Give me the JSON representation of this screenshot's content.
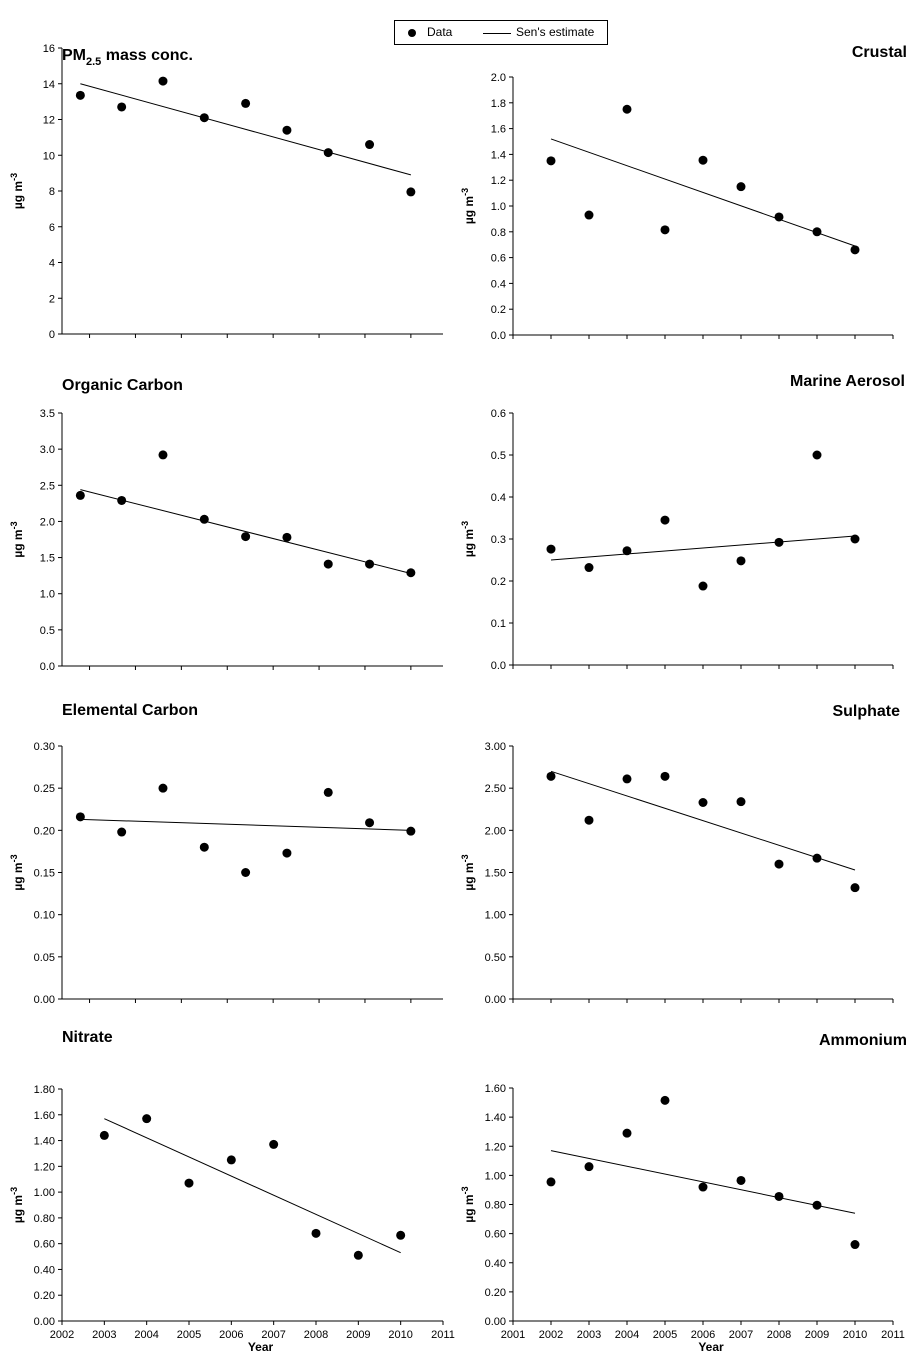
{
  "legend": {
    "data_label": "Data",
    "fit_label": "Sen's estimate"
  },
  "chart_data": [
    {
      "type": "scatter",
      "title": "PM2.5 mass conc.",
      "title_main": "PM",
      "title_sub": "2.5",
      "title_rest": " mass conc.",
      "title_align": "left",
      "ylabel": "µg m-3",
      "ylabel_main": "µg m",
      "ylabel_sup": "-3",
      "ylim": [
        0,
        16
      ],
      "yticks": [
        "0",
        "2",
        "4",
        "6",
        "8",
        "10",
        "12",
        "14",
        "16"
      ],
      "xticks": [],
      "xlabel": "",
      "series": [
        {
          "x": [
            2002.8,
            2003.7,
            2004.6,
            2005.5,
            2006.4,
            2007.3,
            2008.2,
            2009.1,
            2010.0
          ],
          "y": [
            13.35,
            12.7,
            14.15,
            12.1,
            12.9,
            11.4,
            10.15,
            10.6,
            7.95
          ]
        }
      ],
      "fit": {
        "x": [
          2002.8,
          2010.0
        ],
        "y": [
          14.0,
          8.9
        ]
      }
    },
    {
      "type": "scatter",
      "title": "Crustal",
      "title_align": "right",
      "ylabel": "µg m-3",
      "ylabel_main": "µg m",
      "ylabel_sup": "-3",
      "ylim": [
        0,
        2
      ],
      "yticks": [
        "0.0",
        "0.2",
        "0.4",
        "0.6",
        "0.8",
        "1.0",
        "1.2",
        "1.4",
        "1.6",
        "1.8",
        "2.0"
      ],
      "xticks": [],
      "xlabel": "",
      "series": [
        {
          "x": [
            2002,
            2003,
            2004,
            2005,
            2006,
            2007,
            2008,
            2009,
            2010
          ],
          "y": [
            1.35,
            0.93,
            1.75,
            0.815,
            1.355,
            1.15,
            0.915,
            0.8,
            0.66
          ]
        }
      ],
      "fit": {
        "x": [
          2002,
          2010
        ],
        "y": [
          1.52,
          0.69
        ]
      }
    },
    {
      "type": "scatter",
      "title": "Organic Carbon",
      "title_align": "left",
      "ylabel": "µg m-3",
      "ylabel_main": "µg m",
      "ylabel_sup": "-3",
      "ylim": [
        0,
        3.5
      ],
      "yticks": [
        "0.0",
        "0.5",
        "1.0",
        "1.5",
        "2.0",
        "2.5",
        "3.0",
        "3.5"
      ],
      "xticks": [],
      "xlabel": "",
      "series": [
        {
          "x": [
            2002.8,
            2003.7,
            2004.6,
            2005.5,
            2006.4,
            2007.3,
            2008.2,
            2009.1,
            2010.0
          ],
          "y": [
            2.36,
            2.29,
            2.92,
            2.03,
            1.79,
            1.78,
            1.41,
            1.41,
            1.29
          ]
        }
      ],
      "fit": {
        "x": [
          2002.8,
          2010.0
        ],
        "y": [
          2.44,
          1.28
        ]
      }
    },
    {
      "type": "scatter",
      "title": "Marine Aerosol",
      "title_align": "right",
      "ylabel": "µg m-3",
      "ylabel_main": "µg m",
      "ylabel_sup": "-3",
      "ylim": [
        0,
        0.6
      ],
      "yticks": [
        "0.0",
        "0.1",
        "0.2",
        "0.3",
        "0.4",
        "0.5",
        "0.6"
      ],
      "xticks": [],
      "xlabel": "",
      "series": [
        {
          "x": [
            2002,
            2003,
            2004,
            2005,
            2006,
            2007,
            2008,
            2009,
            2010
          ],
          "y": [
            0.276,
            0.232,
            0.272,
            0.345,
            0.188,
            0.248,
            0.292,
            0.5,
            0.3
          ]
        }
      ],
      "fit": {
        "x": [
          2002,
          2010
        ],
        "y": [
          0.25,
          0.307
        ]
      }
    },
    {
      "type": "scatter",
      "title": "Elemental Carbon",
      "title_align": "left",
      "ylabel": "µg m-3",
      "ylabel_main": "µg m",
      "ylabel_sup": "-3",
      "ylim": [
        0,
        0.3
      ],
      "yticks": [
        "0.00",
        "0.05",
        "0.10",
        "0.15",
        "0.20",
        "0.25",
        "0.30"
      ],
      "xticks": [],
      "xlabel": "",
      "series": [
        {
          "x": [
            2002.8,
            2003.7,
            2004.6,
            2005.5,
            2006.4,
            2007.3,
            2008.2,
            2009.1,
            2010.0
          ],
          "y": [
            0.216,
            0.198,
            0.25,
            0.18,
            0.15,
            0.173,
            0.245,
            0.209,
            0.199
          ]
        }
      ],
      "fit": {
        "x": [
          2002.8,
          2010.0
        ],
        "y": [
          0.213,
          0.2
        ]
      }
    },
    {
      "type": "scatter",
      "title": "Sulphate",
      "title_align": "right",
      "ylabel": "µg m-3",
      "ylabel_main": "µg m",
      "ylabel_sup": "-3",
      "ylim": [
        0,
        3
      ],
      "yticks": [
        "0.00",
        "0.50",
        "1.00",
        "1.50",
        "2.00",
        "2.50",
        "3.00"
      ],
      "xticks": [],
      "xlabel": "",
      "series": [
        {
          "x": [
            2002,
            2003,
            2004,
            2005,
            2006,
            2007,
            2008,
            2009,
            2010
          ],
          "y": [
            2.64,
            2.12,
            2.61,
            2.64,
            2.33,
            2.34,
            1.6,
            1.67,
            1.32
          ]
        }
      ],
      "fit": {
        "x": [
          2002,
          2010
        ],
        "y": [
          2.7,
          1.53
        ]
      }
    },
    {
      "type": "scatter",
      "title": "Nitrate",
      "title_align": "left",
      "ylabel": "µg m-3",
      "ylabel_main": "µg m",
      "ylabel_sup": "-3",
      "ylim": [
        0,
        1.8
      ],
      "yticks": [
        "0.00",
        "0.20",
        "0.40",
        "0.60",
        "0.80",
        "1.00",
        "1.20",
        "1.40",
        "1.60",
        "1.80"
      ],
      "xlim": [
        2002,
        2011
      ],
      "xticks": [
        "2002",
        "2003",
        "2004",
        "2005",
        "2006",
        "2007",
        "2008",
        "2009",
        "2010",
        "2011"
      ],
      "xlabel": "Year",
      "series": [
        {
          "x": [
            2003,
            2004,
            2005,
            2006,
            2007,
            2008,
            2009,
            2010
          ],
          "y": [
            1.44,
            1.57,
            1.07,
            1.25,
            1.37,
            0.68,
            0.51,
            0.665
          ]
        }
      ],
      "fit": {
        "x": [
          2003,
          2010
        ],
        "y": [
          1.57,
          0.53
        ]
      }
    },
    {
      "type": "scatter",
      "title": "Ammonium",
      "title_align": "right",
      "ylabel": "µg m-3",
      "ylabel_main": "µg m",
      "ylabel_sup": "-3",
      "ylim": [
        0,
        1.6
      ],
      "yticks": [
        "0.00",
        "0.20",
        "0.40",
        "0.60",
        "0.80",
        "1.00",
        "1.20",
        "1.40",
        "1.60"
      ],
      "xlim": [
        2001,
        2011
      ],
      "xticks": [
        "2001",
        "2002",
        "2003",
        "2004",
        "2005",
        "2006",
        "2007",
        "2008",
        "2009",
        "2010",
        "2011"
      ],
      "xlabel": "Year",
      "series": [
        {
          "x": [
            2002,
            2003,
            2004,
            2005,
            2006,
            2007,
            2008,
            2009,
            2010
          ],
          "y": [
            0.955,
            1.06,
            1.29,
            1.515,
            0.92,
            0.965,
            0.855,
            0.795,
            0.525
          ]
        }
      ],
      "fit": {
        "x": [
          2002,
          2010
        ],
        "y": [
          1.17,
          0.74
        ]
      }
    }
  ]
}
